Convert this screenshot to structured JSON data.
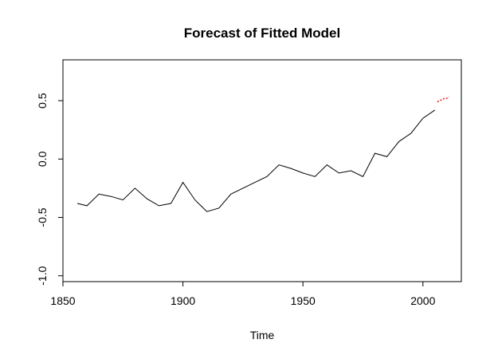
{
  "chart_data": {
    "type": "line",
    "title": "Forecast of Fitted Model",
    "xlabel": "Time",
    "ylabel": "",
    "xlim": [
      1850,
      2016
    ],
    "ylim": [
      -1.05,
      0.85
    ],
    "xticks": [
      1850,
      1900,
      1950,
      2000
    ],
    "xtick_labels": [
      "1850",
      "1900",
      "1950",
      "2000"
    ],
    "yticks": [
      -1.0,
      -0.5,
      0.0,
      0.5
    ],
    "ytick_labels": [
      "-1.0",
      "-0.5",
      "0.0",
      "0.5"
    ],
    "grid": false,
    "legend": "none",
    "series": [
      {
        "color": "#000000",
        "style": "solid",
        "x": [
          1856,
          1860,
          1865,
          1870,
          1875,
          1880,
          1885,
          1890,
          1895,
          1900,
          1905,
          1910,
          1915,
          1920,
          1925,
          1930,
          1935,
          1940,
          1945,
          1950,
          1955,
          1960,
          1965,
          1970,
          1975,
          1980,
          1985,
          1990,
          1995,
          2000,
          2005
        ],
        "y": [
          -0.38,
          -0.4,
          -0.3,
          -0.32,
          -0.35,
          -0.25,
          -0.34,
          -0.4,
          -0.38,
          -0.2,
          -0.35,
          -0.45,
          -0.42,
          -0.3,
          -0.25,
          -0.2,
          -0.15,
          -0.05,
          -0.08,
          -0.12,
          -0.15,
          -0.05,
          -0.12,
          -0.1,
          -0.15,
          0.05,
          0.02,
          0.15,
          0.22,
          0.35,
          0.42
        ]
      },
      {
        "color": "#ff0000",
        "style": "dotted",
        "x": [
          2006,
          2007,
          2008,
          2009,
          2010,
          2011
        ],
        "y": [
          0.49,
          0.5,
          0.51,
          0.52,
          0.52,
          0.53
        ]
      }
    ]
  }
}
